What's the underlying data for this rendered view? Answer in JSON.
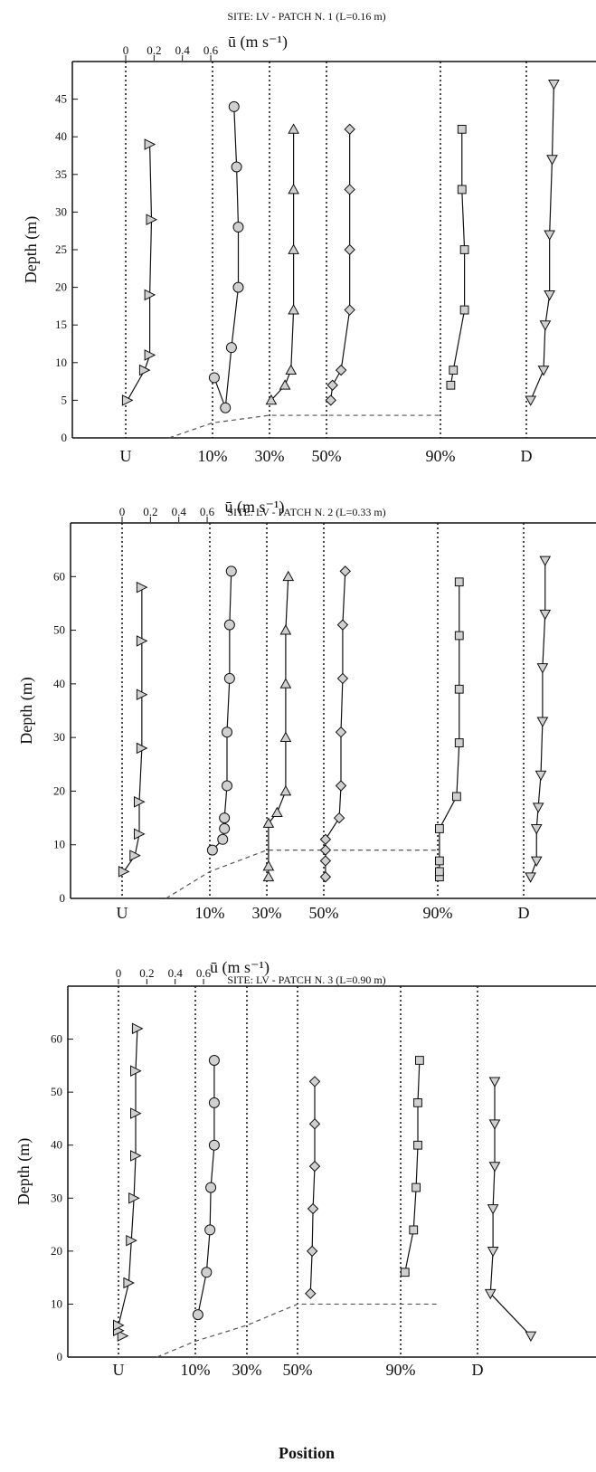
{
  "figure": {
    "xlabel": "Position"
  },
  "style": {
    "line_color": "#111111",
    "marker_fill": "#d0d0d0",
    "bed_line_color": "#555555",
    "background": "#ffffff"
  },
  "chart_data": [
    {
      "type": "line",
      "title": "SITE: LV - PATCH N. 1 (L=0.16 m)",
      "top_axis_label": "ū (m s⁻¹)",
      "top_ticks": [
        "0",
        "0.2",
        "0.4",
        "0.6"
      ],
      "top_tick_values": [
        0,
        0.2,
        0.4,
        0.6
      ],
      "ylabel": "Depth (m)",
      "ylim": [
        0,
        50
      ],
      "yticks": [
        0,
        5,
        10,
        15,
        20,
        25,
        30,
        35,
        40,
        45
      ],
      "positions": [
        "U",
        "10%",
        "30%",
        "50%",
        "90%",
        "D"
      ],
      "bed_line": [
        [
          "U+0.5",
          0
        ],
        [
          "10%",
          2
        ],
        [
          "30%",
          3
        ],
        [
          "50%",
          3
        ],
        [
          "90%",
          3
        ]
      ],
      "series": [
        {
          "position": "U",
          "marker": "triangle-right",
          "points": [
            [
              0.02,
              5
            ],
            [
              0.22,
              9
            ],
            [
              0.28,
              11
            ],
            [
              0.28,
              19
            ],
            [
              0.3,
              29
            ],
            [
              0.28,
              39
            ]
          ]
        },
        {
          "position": "10%",
          "marker": "circle",
          "points": [
            [
              0.02,
              8
            ],
            [
              0.15,
              4
            ],
            [
              0.22,
              12
            ],
            [
              0.3,
              20
            ],
            [
              0.3,
              28
            ],
            [
              0.28,
              36
            ],
            [
              0.25,
              44
            ]
          ]
        },
        {
          "position": "30%",
          "marker": "triangle-up",
          "points": [
            [
              0.02,
              5
            ],
            [
              0.18,
              7
            ],
            [
              0.25,
              9
            ],
            [
              0.28,
              17
            ],
            [
              0.28,
              25
            ],
            [
              0.28,
              33
            ],
            [
              0.28,
              41
            ]
          ]
        },
        {
          "position": "50%",
          "marker": "diamond",
          "points": [
            [
              0.05,
              5
            ],
            [
              0.07,
              7
            ],
            [
              0.17,
              9
            ],
            [
              0.27,
              17
            ],
            [
              0.27,
              25
            ],
            [
              0.27,
              33
            ],
            [
              0.27,
              41
            ]
          ]
        },
        {
          "position": "90%",
          "marker": "square",
          "points": [
            [
              0.12,
              7
            ],
            [
              0.15,
              9
            ],
            [
              0.28,
              17
            ],
            [
              0.28,
              25
            ],
            [
              0.25,
              33
            ],
            [
              0.25,
              41
            ]
          ]
        },
        {
          "position": "D",
          "marker": "triangle-down",
          "points": [
            [
              0.05,
              5
            ],
            [
              0.2,
              9
            ],
            [
              0.22,
              15
            ],
            [
              0.27,
              19
            ],
            [
              0.27,
              27
            ],
            [
              0.3,
              37
            ],
            [
              0.32,
              47
            ]
          ]
        }
      ]
    },
    {
      "type": "line",
      "title": "SITE: LV - PATCH N. 2 (L=0.33 m)",
      "top_axis_label": "ū (m s⁻¹)",
      "top_ticks": [
        "0",
        "0.2",
        "0.4",
        "0.6"
      ],
      "top_tick_values": [
        0,
        0.2,
        0.4,
        0.6
      ],
      "ylabel": "Depth (m)",
      "ylim": [
        0,
        70
      ],
      "yticks": [
        0,
        10,
        20,
        30,
        40,
        50,
        60
      ],
      "positions": [
        "U",
        "10%",
        "30%",
        "50%",
        "90%",
        "D"
      ],
      "bed_line": [
        [
          "U+0.5",
          0
        ],
        [
          "10%",
          5
        ],
        [
          "30%",
          9
        ],
        [
          "50%",
          9
        ],
        [
          "90%",
          9
        ]
      ],
      "series": [
        {
          "position": "U",
          "marker": "triangle-right",
          "points": [
            [
              0.02,
              5
            ],
            [
              0.15,
              8
            ],
            [
              0.2,
              12
            ],
            [
              0.2,
              18
            ],
            [
              0.23,
              28
            ],
            [
              0.23,
              38
            ],
            [
              0.23,
              48
            ],
            [
              0.23,
              58
            ]
          ]
        },
        {
          "position": "10%",
          "marker": "circle",
          "points": [
            [
              0.03,
              9
            ],
            [
              0.15,
              11
            ],
            [
              0.17,
              13
            ],
            [
              0.17,
              15
            ],
            [
              0.2,
              21
            ],
            [
              0.2,
              31
            ],
            [
              0.23,
              41
            ],
            [
              0.23,
              51
            ],
            [
              0.25,
              61
            ]
          ]
        },
        {
          "position": "30%",
          "marker": "triangle-up",
          "points": [
            [
              0.02,
              4
            ],
            [
              0.02,
              6
            ],
            [
              0.02,
              14
            ],
            [
              0.12,
              16
            ],
            [
              0.22,
              20
            ],
            [
              0.22,
              30
            ],
            [
              0.22,
              40
            ],
            [
              0.22,
              50
            ],
            [
              0.25,
              60
            ]
          ]
        },
        {
          "position": "50%",
          "marker": "diamond",
          "points": [
            [
              0.02,
              4
            ],
            [
              0.02,
              7
            ],
            [
              0.02,
              9
            ],
            [
              0.02,
              11
            ],
            [
              0.18,
              15
            ],
            [
              0.2,
              21
            ],
            [
              0.2,
              31
            ],
            [
              0.22,
              41
            ],
            [
              0.22,
              51
            ],
            [
              0.25,
              61
            ]
          ]
        },
        {
          "position": "90%",
          "marker": "square",
          "points": [
            [
              0.02,
              4
            ],
            [
              0.02,
              5
            ],
            [
              0.02,
              7
            ],
            [
              0.02,
              13
            ],
            [
              0.22,
              19
            ],
            [
              0.25,
              29
            ],
            [
              0.25,
              39
            ],
            [
              0.25,
              49
            ],
            [
              0.25,
              59
            ]
          ]
        },
        {
          "position": "D",
          "marker": "triangle-down",
          "points": [
            [
              0.08,
              4
            ],
            [
              0.15,
              7
            ],
            [
              0.15,
              13
            ],
            [
              0.17,
              17
            ],
            [
              0.2,
              23
            ],
            [
              0.22,
              33
            ],
            [
              0.22,
              43
            ],
            [
              0.25,
              53
            ],
            [
              0.25,
              63
            ]
          ]
        }
      ]
    },
    {
      "type": "line",
      "title": "SITE: LV - PATCH N. 3 (L=0.90 m)",
      "top_axis_label": "ū (m s⁻¹)",
      "top_ticks": [
        "0",
        "0.2",
        "0.4",
        "0.6"
      ],
      "top_tick_values": [
        0,
        0.2,
        0.4,
        0.6
      ],
      "ylabel": "Depth (m)",
      "ylim": [
        0,
        70
      ],
      "yticks": [
        0,
        10,
        20,
        30,
        40,
        50,
        60
      ],
      "positions": [
        "U",
        "10%",
        "30%",
        "50%",
        "90%",
        "D"
      ],
      "bed_line": [
        [
          "U+0.5",
          0
        ],
        [
          "10%",
          3
        ],
        [
          "30%",
          6
        ],
        [
          "50%",
          10
        ],
        [
          "90%+0.5",
          10
        ]
      ],
      "series": [
        {
          "position": "U",
          "marker": "triangle-right",
          "points": [
            [
              0.05,
              4
            ],
            [
              0.0,
              5
            ],
            [
              0.0,
              6
            ],
            [
              0.12,
              14
            ],
            [
              0.15,
              22
            ],
            [
              0.18,
              30
            ],
            [
              0.2,
              38
            ],
            [
              0.2,
              46
            ],
            [
              0.2,
              54
            ],
            [
              0.22,
              62
            ]
          ]
        },
        {
          "position": "10%",
          "marker": "circle",
          "points": [
            [
              0.03,
              8
            ],
            [
              0.13,
              16
            ],
            [
              0.17,
              24
            ],
            [
              0.18,
              32
            ],
            [
              0.22,
              40
            ],
            [
              0.22,
              48
            ],
            [
              0.22,
              56
            ]
          ]
        },
        {
          "position": "50%",
          "marker": "diamond",
          "points": [
            [
              0.15,
              12
            ],
            [
              0.17,
              20
            ],
            [
              0.18,
              28
            ],
            [
              0.2,
              36
            ],
            [
              0.2,
              44
            ],
            [
              0.2,
              52
            ]
          ]
        },
        {
          "position": "90%",
          "marker": "square",
          "points": [
            [
              0.05,
              16
            ],
            [
              0.15,
              24
            ],
            [
              0.18,
              32
            ],
            [
              0.2,
              40
            ],
            [
              0.2,
              48
            ],
            [
              0.22,
              56
            ]
          ]
        },
        {
          "position": "D",
          "marker": "triangle-down",
          "points": [
            [
              0.62,
              4
            ],
            [
              0.15,
              12
            ],
            [
              0.18,
              20
            ],
            [
              0.18,
              28
            ],
            [
              0.2,
              36
            ],
            [
              0.2,
              44
            ],
            [
              0.2,
              52
            ]
          ]
        }
      ]
    }
  ]
}
